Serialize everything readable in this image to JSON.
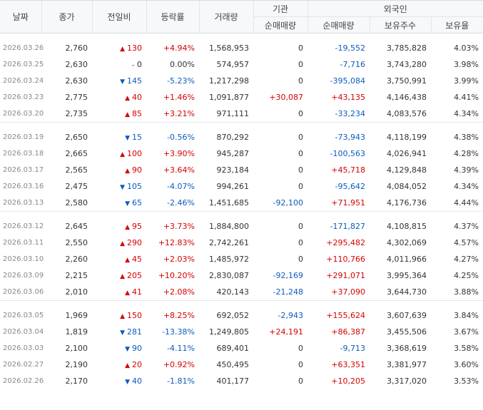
{
  "headers": {
    "date": "날짜",
    "close": "종가",
    "change": "전일비",
    "rate": "등락률",
    "volume": "거래량",
    "inst": "기관",
    "inst_net": "순매매량",
    "foreign": "외국인",
    "foreign_net": "순매매량",
    "foreign_holdings": "보유주수",
    "foreign_ratio": "보유율"
  },
  "colors": {
    "up": "#d60000",
    "down": "#0c5bbf"
  },
  "groups": [
    [
      {
        "date": "2026.03.26",
        "close": "2,760",
        "dir": "up",
        "change": "130",
        "rate": "+4.94%",
        "volume": "1,568,953",
        "inst": "0",
        "foreign": "-19,552",
        "holdings": "3,785,828",
        "ratio": "4.03%"
      },
      {
        "date": "2026.03.25",
        "close": "2,630",
        "dir": "flat",
        "change": "0",
        "rate": "0.00%",
        "volume": "574,957",
        "inst": "0",
        "foreign": "-7,716",
        "holdings": "3,743,280",
        "ratio": "3.98%"
      },
      {
        "date": "2026.03.24",
        "close": "2,630",
        "dir": "down",
        "change": "145",
        "rate": "-5.23%",
        "volume": "1,217,298",
        "inst": "0",
        "foreign": "-395,084",
        "holdings": "3,750,991",
        "ratio": "3.99%"
      },
      {
        "date": "2026.03.23",
        "close": "2,775",
        "dir": "up",
        "change": "40",
        "rate": "+1.46%",
        "volume": "1,091,877",
        "inst": "+30,087",
        "foreign": "+43,135",
        "holdings": "4,146,438",
        "ratio": "4.41%"
      },
      {
        "date": "2026.03.20",
        "close": "2,735",
        "dir": "up",
        "change": "85",
        "rate": "+3.21%",
        "volume": "971,111",
        "inst": "0",
        "foreign": "-33,234",
        "holdings": "4,083,576",
        "ratio": "4.34%"
      }
    ],
    [
      {
        "date": "2026.03.19",
        "close": "2,650",
        "dir": "down",
        "change": "15",
        "rate": "-0.56%",
        "volume": "870,292",
        "inst": "0",
        "foreign": "-73,943",
        "holdings": "4,118,199",
        "ratio": "4.38%"
      },
      {
        "date": "2026.03.18",
        "close": "2,665",
        "dir": "up",
        "change": "100",
        "rate": "+3.90%",
        "volume": "945,287",
        "inst": "0",
        "foreign": "-100,563",
        "holdings": "4,026,941",
        "ratio": "4.28%"
      },
      {
        "date": "2026.03.17",
        "close": "2,565",
        "dir": "up",
        "change": "90",
        "rate": "+3.64%",
        "volume": "923,184",
        "inst": "0",
        "foreign": "+45,718",
        "holdings": "4,129,848",
        "ratio": "4.39%"
      },
      {
        "date": "2026.03.16",
        "close": "2,475",
        "dir": "down",
        "change": "105",
        "rate": "-4.07%",
        "volume": "994,261",
        "inst": "0",
        "foreign": "-95,642",
        "holdings": "4,084,052",
        "ratio": "4.34%"
      },
      {
        "date": "2026.03.13",
        "close": "2,580",
        "dir": "down",
        "change": "65",
        "rate": "-2.46%",
        "volume": "1,451,685",
        "inst": "-92,100",
        "foreign": "+71,951",
        "holdings": "4,176,736",
        "ratio": "4.44%"
      }
    ],
    [
      {
        "date": "2026.03.12",
        "close": "2,645",
        "dir": "up",
        "change": "95",
        "rate": "+3.73%",
        "volume": "1,884,800",
        "inst": "0",
        "foreign": "-171,827",
        "holdings": "4,108,815",
        "ratio": "4.37%"
      },
      {
        "date": "2026.03.11",
        "close": "2,550",
        "dir": "up",
        "change": "290",
        "rate": "+12.83%",
        "volume": "2,742,261",
        "inst": "0",
        "foreign": "+295,482",
        "holdings": "4,302,069",
        "ratio": "4.57%"
      },
      {
        "date": "2026.03.10",
        "close": "2,260",
        "dir": "up",
        "change": "45",
        "rate": "+2.03%",
        "volume": "1,485,972",
        "inst": "0",
        "foreign": "+110,766",
        "holdings": "4,011,966",
        "ratio": "4.27%"
      },
      {
        "date": "2026.03.09",
        "close": "2,215",
        "dir": "up",
        "change": "205",
        "rate": "+10.20%",
        "volume": "2,830,087",
        "inst": "-92,169",
        "foreign": "+291,071",
        "holdings": "3,995,364",
        "ratio": "4.25%"
      },
      {
        "date": "2026.03.06",
        "close": "2,010",
        "dir": "up",
        "change": "41",
        "rate": "+2.08%",
        "volume": "420,143",
        "inst": "-21,248",
        "foreign": "+37,090",
        "holdings": "3,644,730",
        "ratio": "3.88%"
      }
    ],
    [
      {
        "date": "2026.03.05",
        "close": "1,969",
        "dir": "up",
        "change": "150",
        "rate": "+8.25%",
        "volume": "692,052",
        "inst": "-2,943",
        "foreign": "+155,624",
        "holdings": "3,607,639",
        "ratio": "3.84%"
      },
      {
        "date": "2026.03.04",
        "close": "1,819",
        "dir": "down",
        "change": "281",
        "rate": "-13.38%",
        "volume": "1,249,805",
        "inst": "+24,191",
        "foreign": "+86,387",
        "holdings": "3,455,506",
        "ratio": "3.67%"
      },
      {
        "date": "2026.03.03",
        "close": "2,100",
        "dir": "down",
        "change": "90",
        "rate": "-4.11%",
        "volume": "689,401",
        "inst": "0",
        "foreign": "-9,713",
        "holdings": "3,368,619",
        "ratio": "3.58%"
      },
      {
        "date": "2026.02.27",
        "close": "2,190",
        "dir": "up",
        "change": "20",
        "rate": "+0.92%",
        "volume": "450,495",
        "inst": "0",
        "foreign": "+63,351",
        "holdings": "3,381,977",
        "ratio": "3.60%"
      },
      {
        "date": "2026.02.26",
        "close": "2,170",
        "dir": "down",
        "change": "40",
        "rate": "-1.81%",
        "volume": "401,177",
        "inst": "0",
        "foreign": "+10,205",
        "holdings": "3,317,020",
        "ratio": "3.53%"
      }
    ]
  ]
}
